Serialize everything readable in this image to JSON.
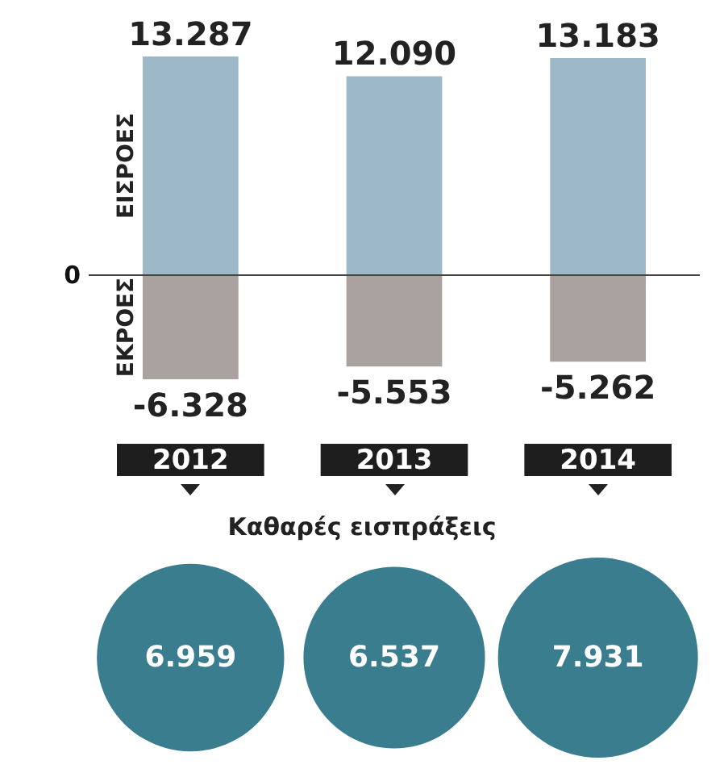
{
  "chart_data": [
    {
      "type": "bar",
      "categories": [
        "2012",
        "2013",
        "2014"
      ],
      "stacked": true,
      "series": [
        {
          "name": "ΕΙΣΡΟΕΣ",
          "color": "#9db8c7",
          "values": [
            13.287,
            12.09,
            13.183
          ],
          "value_labels": [
            "13.287",
            "12.090",
            "13.183"
          ]
        },
        {
          "name": "ΕΚΡΟΕΣ",
          "color": "#aaa29e",
          "values": [
            -6.328,
            -5.553,
            -5.262
          ],
          "value_labels": [
            "-6.328",
            "-5.553",
            "-5.262"
          ]
        }
      ],
      "ref_lines": [
        {
          "axis": "y",
          "value": 0,
          "label": "0",
          "color": "#444444"
        }
      ]
    },
    {
      "type": "other",
      "title": "Καθαρές εισπράξεις",
      "categories": [
        null,
        null,
        null
      ],
      "values": [
        6.959,
        6.537,
        7.931
      ],
      "color": "#3a7d8f",
      "data_labels": true
    }
  ]
}
